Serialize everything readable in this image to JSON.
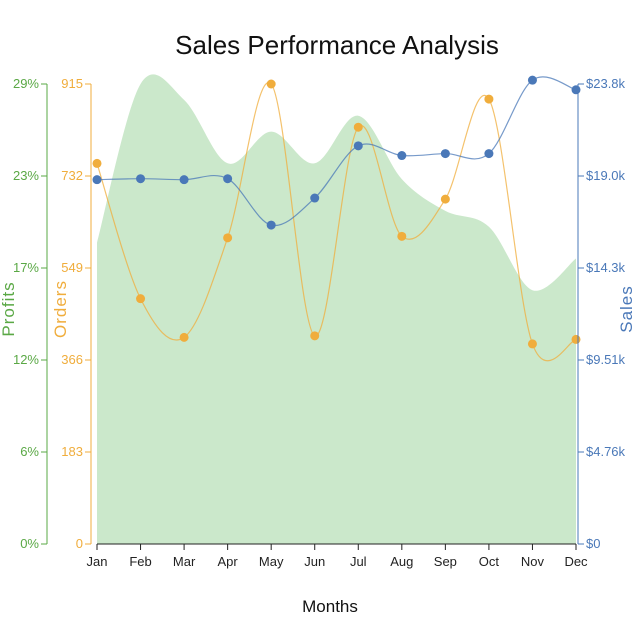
{
  "chart_data": {
    "type": "line",
    "title": "Sales Performance Analysis",
    "xlabel": "Months",
    "categories": [
      "Jan",
      "Feb",
      "Mar",
      "Apr",
      "May",
      "Jun",
      "Jul",
      "Aug",
      "Sep",
      "Oct",
      "Nov",
      "Dec"
    ],
    "axes": {
      "profits": {
        "label": "Profits",
        "ticks": [
          "0%",
          "6%",
          "12%",
          "17%",
          "23%",
          "29%"
        ],
        "ylim": [
          0,
          29
        ],
        "color": "#5aa845"
      },
      "orders": {
        "label": "Orders",
        "ticks": [
          "0",
          "183",
          "366",
          "549",
          "732",
          "915"
        ],
        "ylim": [
          0,
          915
        ],
        "color": "#f0ad3c"
      },
      "sales": {
        "label": "Sales",
        "ticks": [
          "$0",
          "$4.76k",
          "$9.51k",
          "$14.3k",
          "$19.0k",
          "$23.8k"
        ],
        "ylim": [
          0,
          23800
        ],
        "color": "#4a78b8"
      }
    },
    "series": [
      {
        "axis": "profits",
        "kind": "area",
        "color": "#cbe8cb",
        "values": [
          19.0,
          29.0,
          28.0,
          24.0,
          26.0,
          24.0,
          27.0,
          23.0,
          21.0,
          20.0,
          16.0,
          18.0
        ]
      },
      {
        "axis": "orders",
        "kind": "line",
        "color": "#f0ad3c",
        "values": [
          757,
          488,
          411,
          609,
          915,
          414,
          829,
          612,
          686,
          885,
          398,
          407
        ]
      },
      {
        "axis": "sales",
        "kind": "line",
        "color": "#4a78b8",
        "values": [
          18850,
          18900,
          18850,
          18900,
          16500,
          17900,
          20600,
          20100,
          20200,
          20200,
          24000,
          23500
        ]
      }
    ],
    "grid": false,
    "legend": "none"
  }
}
